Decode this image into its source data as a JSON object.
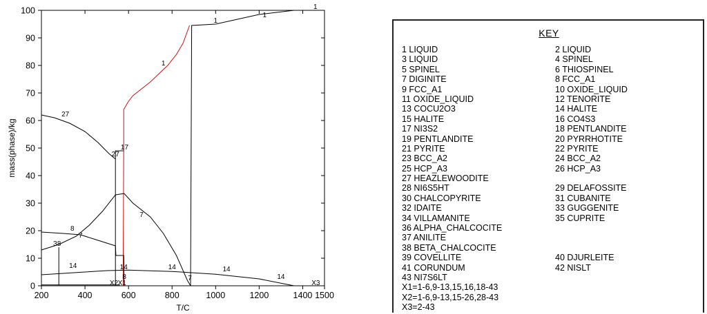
{
  "chart_data": {
    "type": "line",
    "xlabel": "T/C",
    "ylabel": "mass(phase)/kg",
    "xlim": [
      200,
      1500
    ],
    "ylim": [
      0,
      100
    ],
    "x_ticks": [
      "200",
      "400",
      "600",
      "800",
      "1000",
      "1200",
      "1400",
      "1500"
    ],
    "y_ticks": [
      "0",
      "10",
      "20",
      "30",
      "40",
      "50",
      "60",
      "70",
      "80",
      "90",
      "100"
    ],
    "series": [
      {
        "name": "1",
        "color": "#000000",
        "points": [
          [
            885,
            0
          ],
          [
            890,
            94.5
          ],
          [
            1000,
            95
          ],
          [
            1200,
            98.5
          ],
          [
            1360,
            100
          ],
          [
            1500,
            100
          ]
        ]
      },
      {
        "name": "17",
        "color": "#d01010",
        "points": [
          [
            575,
            0
          ],
          [
            578,
            50
          ],
          [
            578,
            64
          ],
          [
            600,
            67
          ],
          [
            620,
            69
          ],
          [
            700,
            74
          ],
          [
            780,
            80
          ],
          [
            820,
            84
          ],
          [
            850,
            88
          ],
          [
            880,
            94.5
          ]
        ]
      },
      {
        "name": "27",
        "color": "#000000",
        "points": [
          [
            200,
            62
          ],
          [
            260,
            61
          ],
          [
            330,
            59
          ],
          [
            400,
            56
          ],
          [
            460,
            52
          ],
          [
            510,
            48
          ],
          [
            540,
            46
          ]
        ]
      },
      {
        "name": "7",
        "color": "#000000",
        "points": [
          [
            200,
            13
          ],
          [
            280,
            15
          ],
          [
            360,
            18
          ],
          [
            420,
            22
          ],
          [
            480,
            27
          ],
          [
            540,
            33
          ],
          [
            580,
            33.5
          ],
          [
            620,
            30
          ],
          [
            700,
            25
          ],
          [
            760,
            19
          ],
          [
            820,
            11
          ],
          [
            870,
            2
          ],
          [
            885,
            0
          ]
        ]
      },
      {
        "name": "8",
        "color": "#000000",
        "points": [
          [
            200,
            19.5
          ],
          [
            300,
            19
          ],
          [
            380,
            18.5
          ],
          [
            440,
            17
          ],
          [
            500,
            15.5
          ],
          [
            540,
            14.5
          ],
          [
            542,
            11
          ],
          [
            578,
            11
          ],
          [
            580,
            0
          ]
        ]
      },
      {
        "name": "14",
        "color": "#000000",
        "points": [
          [
            200,
            4
          ],
          [
            300,
            4.5
          ],
          [
            400,
            5
          ],
          [
            500,
            5.5
          ],
          [
            600,
            5.7
          ],
          [
            800,
            5.2
          ],
          [
            1000,
            4.2
          ],
          [
            1200,
            2.5
          ],
          [
            1360,
            0
          ]
        ]
      },
      {
        "name": "38",
        "color": "#000000",
        "points": [
          [
            280,
            0
          ],
          [
            280,
            14
          ]
        ]
      },
      {
        "name": "27",
        "color": "#000000",
        "points": [
          [
            540,
            0
          ],
          [
            540,
            49
          ],
          [
            578,
            49
          ]
        ]
      },
      {
        "name": "",
        "color": "#000000",
        "points": [
          [
            200,
            0.3
          ],
          [
            560,
            0.3
          ]
        ]
      }
    ],
    "annotations": [
      {
        "text": "1",
        "x": 1458,
        "y": 100.5
      },
      {
        "text": "1",
        "x": 1225,
        "y": 97.5
      },
      {
        "text": "1",
        "x": 1000,
        "y": 95.5
      },
      {
        "text": "1",
        "x": 760,
        "y": 80
      },
      {
        "text": "27",
        "x": 310,
        "y": 61.5
      },
      {
        "text": "27",
        "x": 540,
        "y": 47
      },
      {
        "text": "17",
        "x": 582,
        "y": 49.5
      },
      {
        "text": "7",
        "x": 660,
        "y": 25
      },
      {
        "text": "8",
        "x": 342,
        "y": 20
      },
      {
        "text": "7",
        "x": 380,
        "y": 17.5
      },
      {
        "text": "38",
        "x": 272,
        "y": 14.5
      },
      {
        "text": "14",
        "x": 345,
        "y": 6.5
      },
      {
        "text": "14",
        "x": 578,
        "y": 6
      },
      {
        "text": "14",
        "x": 800,
        "y": 6
      },
      {
        "text": "14",
        "x": 1050,
        "y": 5.2
      },
      {
        "text": "14",
        "x": 1300,
        "y": 2.5
      },
      {
        "text": "8",
        "x": 581,
        "y": 2.5
      },
      {
        "text": "7",
        "x": 882,
        "y": 2
      },
      {
        "text": "X2",
        "x": 533,
        "y": 0.3
      },
      {
        "text": "X1",
        "x": 570,
        "y": 0.3
      },
      {
        "text": "X3",
        "x": 1460,
        "y": 0.3
      }
    ]
  },
  "key": {
    "title": "KEY",
    "entries": [
      "1 LIQUID",
      "2 LIQUID",
      "3 LIQUID",
      "4 SPINEL",
      "5 SPINEL",
      "6 THIOSPINEL",
      "7 DIGINITE",
      "8 FCC_A1",
      "9 FCC_A1",
      "10 OXIDE_LIQUID",
      "11 OXIDE_LIQUID",
      "12 TENORITE",
      "13 COCU2O3",
      "14 HALITE",
      "15 HALITE",
      "16 CO4S3",
      "17 NI3S2",
      "18 PENTLANDITE",
      "19 PENTLANDITE",
      "20 PYRRHOTITE",
      "21 PYRITE",
      "22 PYRITE",
      "23 BCC_A2",
      "24 BCC_A2",
      "25 HCP_A3",
      "26 HCP_A3",
      "27 HEAZLEWOODITE",
      "",
      "28 NI6S5HT",
      "29 DELAFOSSITE",
      "30 CHALCOPYRITE",
      "31 CUBANITE",
      "32 IDAITE",
      "33 GUGGENITE",
      "34 VILLAMANITE",
      "35 CUPRITE",
      "36 ALPHA_CHALCOCITE",
      "",
      "37 ANILITE",
      "",
      "38 BETA_CHALCOCITE",
      "",
      "39 COVELLITE",
      "40 DJURLEITE",
      "41 CORUNDUM",
      "42 NISLT",
      "43 NI7S6LT",
      "",
      "X1=1-6,9-13,15,16,18-43",
      "",
      "X2=1-6,9-13,15-26,28-43",
      "",
      "X3=2-43",
      ""
    ]
  }
}
